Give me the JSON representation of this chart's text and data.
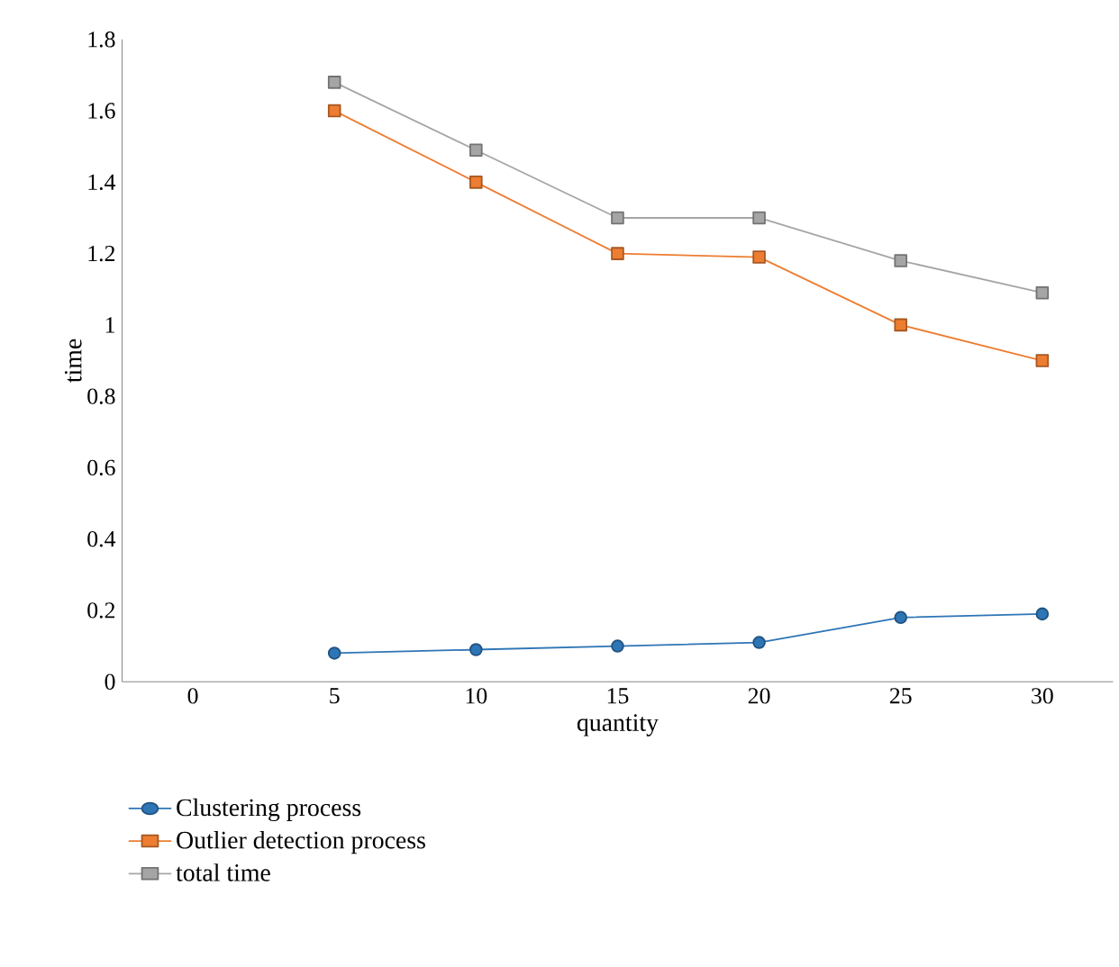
{
  "chart_data": {
    "type": "line",
    "xlabel": "quantity",
    "ylabel": "time",
    "categories": [
      "0",
      "5",
      "10",
      "15",
      "20",
      "25",
      "30"
    ],
    "series": [
      {
        "name": "Clustering process",
        "color": "#2e75b6",
        "marker": "circle",
        "values": [
          null,
          0.08,
          0.09,
          0.1,
          0.11,
          0.18,
          0.19
        ]
      },
      {
        "name": "Outlier detection process",
        "color": "#ed7d31",
        "marker": "square",
        "values": [
          null,
          1.6,
          1.4,
          1.2,
          1.19,
          1.0,
          0.9
        ]
      },
      {
        "name": "total time",
        "color": "#a5a5a5",
        "marker": "square",
        "values": [
          null,
          1.68,
          1.49,
          1.3,
          1.3,
          1.18,
          1.09
        ]
      }
    ],
    "ylim": [
      0,
      1.8
    ],
    "yticks": [
      0,
      0.2,
      0.4,
      0.6,
      0.8,
      1,
      1.2,
      1.4,
      1.6,
      1.8
    ],
    "grid": false,
    "legend": "bottom left"
  }
}
